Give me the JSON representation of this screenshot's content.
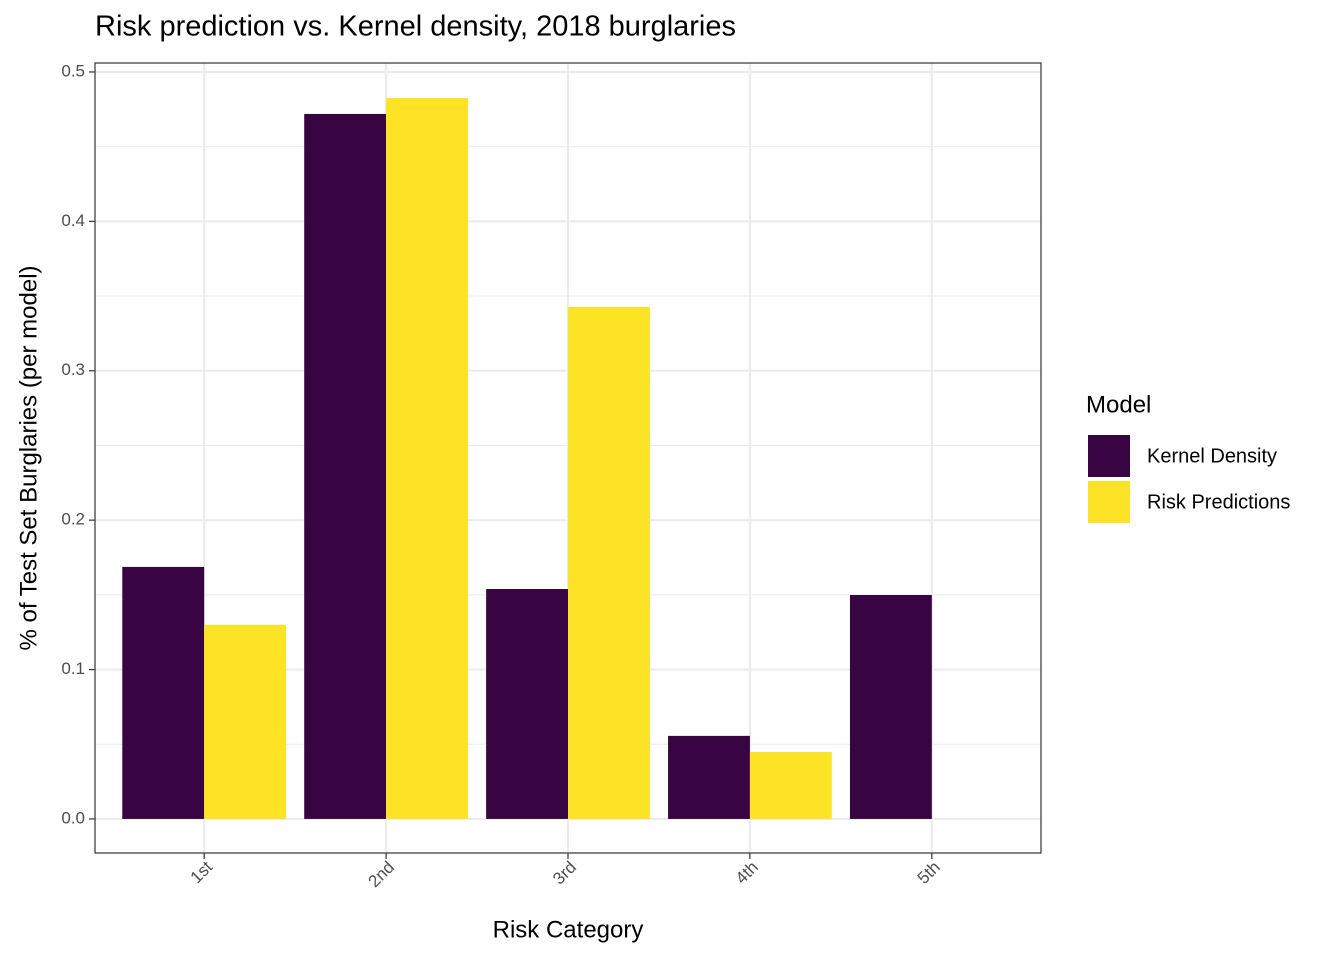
{
  "chart_data": {
    "type": "bar",
    "title": "Risk prediction vs. Kernel density, 2018 burglaries",
    "x_label": "Risk Category",
    "y_label": "% of Test Set Burglaries (per model)",
    "legend_title": "Model",
    "categories": [
      "1st",
      "2nd",
      "3rd",
      "4th",
      "5th"
    ],
    "series": [
      {
        "name": "Kernel Density",
        "color": "#380441",
        "values": [
          0.1687,
          0.4719,
          0.1539,
          0.0556,
          0.1499
        ]
      },
      {
        "name": "Risk Predictions",
        "color": "#fde325",
        "values": [
          0.1299,
          0.4826,
          0.3427,
          0.0448,
          null
        ]
      }
    ],
    "ylim": [
      -0.0228,
      0.506
    ],
    "yticks": [
      {
        "value": 0,
        "label": "0.0"
      },
      0.1,
      0.2,
      0.3,
      0.4,
      0.5
    ],
    "grid": true,
    "legend": "right"
  }
}
